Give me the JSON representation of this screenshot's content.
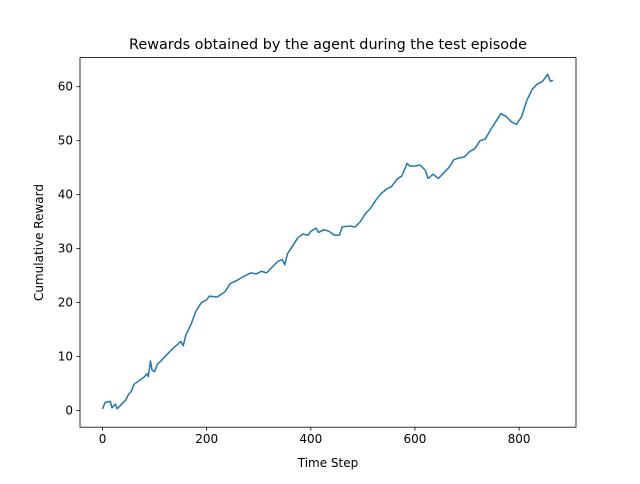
{
  "chart_data": {
    "type": "line",
    "title": "Rewards obtained by the agent during the test episode",
    "x_label": "Time Step",
    "y_label": "Cumulative Reward",
    "x": [
      0,
      5,
      15,
      18,
      25,
      28,
      35,
      45,
      50,
      55,
      60,
      70,
      80,
      85,
      88,
      92,
      95,
      100,
      105,
      115,
      125,
      135,
      145,
      150,
      155,
      160,
      170,
      180,
      190,
      200,
      205,
      220,
      235,
      245,
      260,
      270,
      285,
      295,
      305,
      315,
      325,
      335,
      345,
      350,
      355,
      365,
      375,
      385,
      395,
      400,
      410,
      415,
      425,
      435,
      445,
      455,
      460,
      475,
      485,
      495,
      505,
      515,
      525,
      535,
      545,
      555,
      565,
      575,
      585,
      590,
      600,
      610,
      620,
      625,
      635,
      645,
      655,
      665,
      675,
      685,
      695,
      705,
      715,
      725,
      735,
      745,
      755,
      765,
      775,
      785,
      795,
      805,
      815,
      825,
      835,
      845,
      855,
      860,
      865
    ],
    "series": [
      {
        "name": "Cumulative Reward",
        "color": "#1f77b4",
        "values": [
          0.3,
          1.5,
          1.7,
          0.5,
          1.2,
          0.3,
          1,
          2,
          3,
          3.5,
          4.8,
          5.5,
          6.2,
          6.8,
          6.3,
          9.2,
          7.5,
          7.2,
          8.5,
          9.5,
          10.5,
          11.5,
          12.3,
          12.8,
          12,
          14,
          16,
          18.5,
          20,
          20.5,
          21.2,
          21,
          22,
          23.5,
          24.2,
          24.8,
          25.5,
          25.3,
          25.8,
          25.5,
          26.5,
          27.5,
          28,
          27,
          29,
          30.5,
          32,
          32.7,
          32.5,
          33.2,
          33.8,
          33,
          33.5,
          33.2,
          32.5,
          32.5,
          34,
          34.2,
          34,
          35,
          36.5,
          37.5,
          39,
          40.2,
          41,
          41.5,
          42.8,
          43.5,
          45.8,
          45.3,
          45.3,
          45.5,
          44.5,
          43,
          43.8,
          43,
          44,
          45,
          46.5,
          46.8,
          47,
          48,
          48.5,
          50,
          50.3,
          52,
          53.5,
          55,
          54.5,
          53.5,
          53,
          54.5,
          57.5,
          59.5,
          60.5,
          61,
          62.3,
          61,
          61.2
        ]
      }
    ],
    "xlim": [
      -43.3,
      909.3
    ],
    "ylim": [
      -3.1,
      65.4
    ],
    "xticks": [
      0,
      200,
      400,
      600,
      800
    ],
    "yticks": [
      0,
      10,
      20,
      30,
      40,
      50,
      60
    ]
  }
}
